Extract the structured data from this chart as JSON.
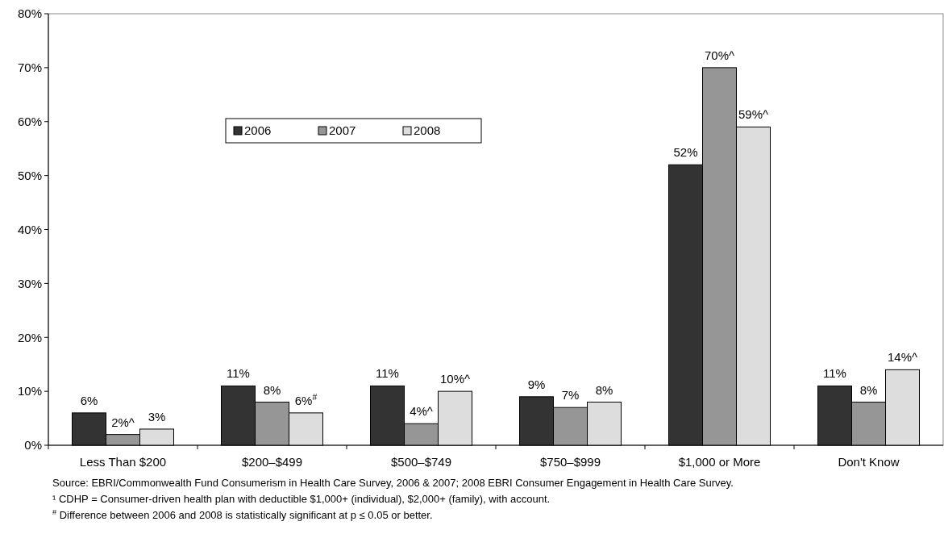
{
  "chart_data": {
    "type": "bar",
    "categories": [
      "Less Than $200",
      "$200–$499",
      "$500–$749",
      "$750–$999",
      "$1,000 or More",
      "Don't Know"
    ],
    "series": [
      {
        "name": "2006",
        "color": "#333333",
        "values": [
          6,
          11,
          11,
          9,
          52,
          11
        ],
        "value_labels": [
          "6%",
          "11%",
          "11%",
          "9%",
          "52%",
          "11%"
        ]
      },
      {
        "name": "2007",
        "color": "#969696",
        "values": [
          2,
          8,
          4,
          7,
          70,
          8
        ],
        "value_labels": [
          "2%^",
          "8%",
          "4%^",
          "7%",
          "70%^",
          "8%"
        ]
      },
      {
        "name": "2008",
        "color": "#dddddd",
        "values": [
          3,
          6,
          10,
          8,
          59,
          14
        ],
        "value_labels": [
          "3%",
          "6%$^{#}$",
          "10%^",
          "8%",
          "59%^",
          "14%^"
        ]
      }
    ],
    "ylim": [
      0,
      80
    ],
    "yticks": [
      {
        "value": 0,
        "label": "0%"
      },
      {
        "value": 10,
        "label": "10%"
      },
      {
        "value": 20,
        "label": "20%"
      },
      {
        "value": 30,
        "label": "30%"
      },
      {
        "value": 40,
        "label": "40%"
      },
      {
        "value": 50,
        "label": "50%"
      },
      {
        "value": 60,
        "label": "60%"
      },
      {
        "value": 70,
        "label": "70%"
      },
      {
        "value": 80,
        "label": "80%"
      }
    ],
    "legend": "top left",
    "annotations": [
      "Source: EBRI/Commonwealth Fund Consumerism in Health Care Survey, 2006 & 2007; 2008 EBRI Consumer Engagement in Health Care Survey.",
      "¹ CDHP = Consumer-driven health plan with deductible $1,000+ (individual), $2,000+ (family), with account.",
      "$^{#}$ Difference between 2006 and 2008 is statistically significant at p ≤ 0.05 or better."
    ]
  }
}
